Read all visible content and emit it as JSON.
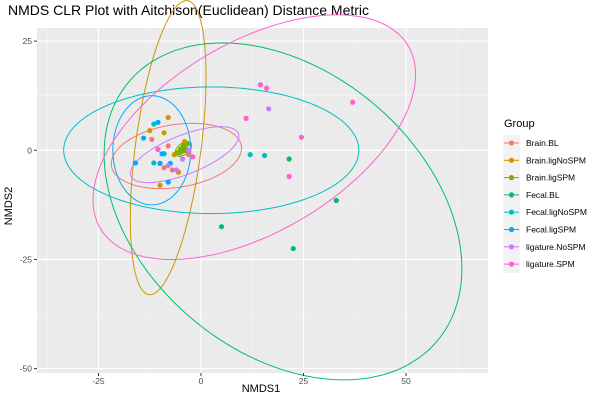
{
  "chart_data": {
    "type": "scatter",
    "title": "NMDS CLR Plot with Aitchison(Euclidean) Distance Metric",
    "xlabel": "NMDS1",
    "ylabel": "NMDS2",
    "xlim": [
      -40,
      70
    ],
    "ylim": [
      -51,
      28
    ],
    "x_ticks": [
      -25,
      0,
      25,
      50
    ],
    "y_ticks": [
      25,
      0,
      -25,
      -50
    ],
    "grid": true,
    "background": "#ebebeb",
    "legend": {
      "title": "Group",
      "position": "right"
    },
    "series": [
      {
        "name": "Brain.BL",
        "color": "#f8766d",
        "points": [
          [
            -12,
            2.5
          ],
          [
            -10.5,
            0.2
          ],
          [
            -9,
            -4
          ],
          [
            -7,
            -4.5
          ],
          [
            -5.5,
            -5
          ],
          [
            -8,
            1
          ],
          [
            -4,
            0.5
          ],
          [
            -3,
            -1
          ]
        ],
        "ellipse": {
          "cx": -6,
          "cy": -1.3,
          "rx": 16,
          "ry": 7.2,
          "rotation": 8
        }
      },
      {
        "name": "Brain.ligNoSPM",
        "color": "#cd9600",
        "points": [
          [
            -12.5,
            4.5
          ],
          [
            -8,
            7.5
          ],
          [
            -9,
            4
          ],
          [
            -10,
            -8
          ],
          [
            -5.5,
            -5
          ],
          [
            -6.5,
            -1
          ],
          [
            -4,
            2
          ]
        ],
        "ellipse": {
          "cx": -8,
          "cy": 0.6,
          "rx": 34,
          "ry": 8,
          "rotation": 82
        }
      },
      {
        "name": "Brain.ligSPM",
        "color": "#7cae00",
        "points": [
          [
            -5,
            0.3
          ],
          [
            -4.3,
            1
          ],
          [
            -3.8,
            0.4
          ],
          [
            -4.5,
            -0.2
          ],
          [
            -5.2,
            -0.6
          ],
          [
            -3.6,
            -0.1
          ],
          [
            -4.1,
            0.7
          ],
          [
            -3.2,
            1.5
          ],
          [
            -5.8,
            -0.5
          ]
        ],
        "ellipse": {
          "cx": -4.3,
          "cy": 0.3,
          "rx": 2.3,
          "ry": 1.3,
          "rotation": 35
        }
      },
      {
        "name": "Fecal.BL",
        "color": "#00be67",
        "points": [
          [
            5,
            -17.5
          ],
          [
            21.5,
            -2
          ],
          [
            22.5,
            -22.5
          ],
          [
            33,
            -11.5
          ]
        ],
        "ellipse": {
          "cx": 20,
          "cy": -14,
          "rx": 48,
          "ry": 33,
          "rotation": -35
        }
      },
      {
        "name": "Fecal.ligNoSPM",
        "color": "#00bfc4",
        "points": [
          [
            -11.5,
            6
          ],
          [
            12,
            -1
          ],
          [
            15.5,
            -1.2
          ],
          [
            -9,
            -0.8
          ],
          [
            -11.5,
            -2.9
          ]
        ],
        "ellipse": {
          "cx": 2.5,
          "cy": 0,
          "rx": 36,
          "ry": 14.5,
          "rotation": 0
        }
      },
      {
        "name": "Fecal.ligSPM",
        "color": "#00a9ff",
        "points": [
          [
            -14,
            2.8
          ],
          [
            -16,
            -2.9
          ],
          [
            -10,
            -3
          ],
          [
            -8,
            -7.3
          ],
          [
            -7.5,
            -3
          ],
          [
            -10.5,
            6.4
          ],
          [
            -9.5,
            -0.8
          ]
        ],
        "ellipse": {
          "cx": -12,
          "cy": 0,
          "rx": 9.5,
          "ry": 12.5,
          "rotation": 0
        }
      },
      {
        "name": "ligature.NoSPM",
        "color": "#c77cff",
        "points": [
          [
            -8,
            -3.5
          ],
          [
            -6,
            -4.5
          ],
          [
            16.5,
            9.5
          ],
          [
            -3,
            0
          ],
          [
            -4.5,
            -2
          ]
        ],
        "ellipse": {
          "cx": -4,
          "cy": -1,
          "rx": 14,
          "ry": 4.5,
          "rotation": 20
        }
      },
      {
        "name": "ligature.SPM",
        "color": "#ff61cc",
        "points": [
          [
            14.5,
            15
          ],
          [
            16,
            14.2
          ],
          [
            37,
            11
          ],
          [
            11,
            7.3
          ],
          [
            24.5,
            3
          ],
          [
            21.5,
            -6
          ],
          [
            -10.5,
            0.2
          ],
          [
            -2,
            -1.5
          ]
        ],
        "ellipse": {
          "cx": 13,
          "cy": 3,
          "rx": 43,
          "ry": 22,
          "rotation": 28
        }
      }
    ]
  }
}
